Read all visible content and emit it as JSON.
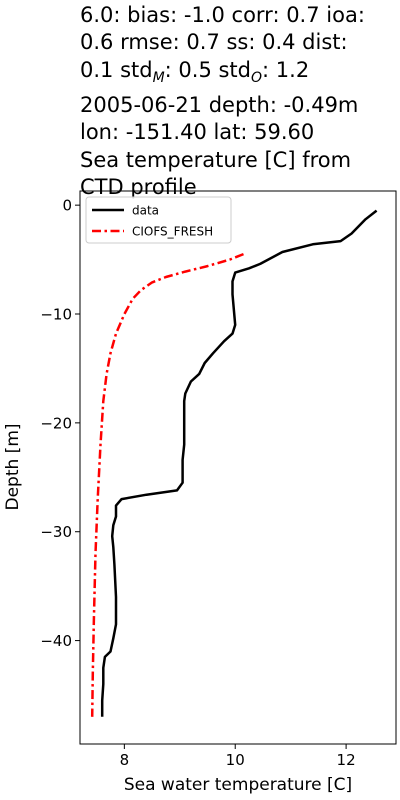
{
  "chart_data": {
    "type": "line",
    "title": "6.0: bias: -1.0  corr: 0.7  ioa: 0.6  rmse: 0.7  ss: 0.4  dist: 0.1  std_M: 0.5  std_O: 1.2\n2005-06-21 depth: -0.49m\nlon: -151.40 lat: 59.60\nSea temperature [C] from CTD profile",
    "title_lines": [
      "6.0: bias: -1.0  corr: 0.7  ioa:",
      "0.6  rmse: 0.7  ss: 0.4  dist:",
      "0.1  std",
      "2005-06-21 depth: -0.49m",
      "lon: -151.40 lat: 59.60",
      "Sea temperature [C] from",
      "CTD profile"
    ],
    "title_stats_line": {
      "std_m_sub": "M",
      "std_m_value": ": 0.5  std",
      "std_o_sub": "O",
      "std_o_value": ": 1.2"
    },
    "xlabel": "Sea water temperature [C]",
    "ylabel": "Depth [m]",
    "xlim": [
      7.2,
      12.9
    ],
    "ylim": [
      -49.5,
      1.3
    ],
    "xticks": [
      8,
      10,
      12
    ],
    "yticks": [
      0,
      -10,
      -20,
      -30,
      -40
    ],
    "ytick_labels": [
      "0",
      "−10",
      "−20",
      "−30",
      "−40"
    ],
    "grid": false,
    "legend_position": "upper-left",
    "series": [
      {
        "name": "data",
        "color": "#000000",
        "style": "solid",
        "points": [
          [
            12.55,
            -0.5
          ],
          [
            12.35,
            -1.3
          ],
          [
            12.1,
            -2.6
          ],
          [
            11.9,
            -3.3
          ],
          [
            11.4,
            -3.6
          ],
          [
            10.85,
            -4.3
          ],
          [
            10.45,
            -5.4
          ],
          [
            10.25,
            -5.8
          ],
          [
            10.0,
            -6.2
          ],
          [
            9.95,
            -7.0
          ],
          [
            9.95,
            -8.2
          ],
          [
            10.0,
            -11.0
          ],
          [
            9.95,
            -11.8
          ],
          [
            9.8,
            -12.5
          ],
          [
            9.6,
            -13.6
          ],
          [
            9.45,
            -14.5
          ],
          [
            9.35,
            -15.5
          ],
          [
            9.2,
            -16.2
          ],
          [
            9.1,
            -17.3
          ],
          [
            9.08,
            -18.0
          ],
          [
            9.08,
            -22.0
          ],
          [
            9.05,
            -23.4
          ],
          [
            9.05,
            -25.5
          ],
          [
            8.95,
            -26.2
          ],
          [
            8.4,
            -26.6
          ],
          [
            7.95,
            -27.0
          ],
          [
            7.85,
            -27.6
          ],
          [
            7.85,
            -28.6
          ],
          [
            7.8,
            -29.4
          ],
          [
            7.78,
            -30.4
          ],
          [
            7.8,
            -31.4
          ],
          [
            7.82,
            -33.0
          ],
          [
            7.85,
            -36.0
          ],
          [
            7.85,
            -38.5
          ],
          [
            7.8,
            -39.8
          ],
          [
            7.75,
            -41.0
          ],
          [
            7.65,
            -41.5
          ],
          [
            7.62,
            -42.5
          ],
          [
            7.62,
            -44.0
          ],
          [
            7.6,
            -45.5
          ],
          [
            7.6,
            -47.0
          ]
        ]
      },
      {
        "name": "CIOFS_FRESH",
        "color": "#ff0000",
        "style": "dashdot",
        "points": [
          [
            10.15,
            -4.5
          ],
          [
            9.9,
            -5.0
          ],
          [
            9.5,
            -5.6
          ],
          [
            9.1,
            -6.1
          ],
          [
            8.75,
            -6.6
          ],
          [
            8.5,
            -7.1
          ],
          [
            8.3,
            -7.8
          ],
          [
            8.15,
            -8.6
          ],
          [
            8.0,
            -10.0
          ],
          [
            7.85,
            -11.8
          ],
          [
            7.75,
            -13.6
          ],
          [
            7.68,
            -15.5
          ],
          [
            7.62,
            -18.0
          ],
          [
            7.57,
            -22.0
          ],
          [
            7.52,
            -27.0
          ],
          [
            7.48,
            -32.0
          ],
          [
            7.45,
            -38.0
          ],
          [
            7.43,
            -43.0
          ],
          [
            7.42,
            -47.0
          ]
        ]
      }
    ]
  }
}
